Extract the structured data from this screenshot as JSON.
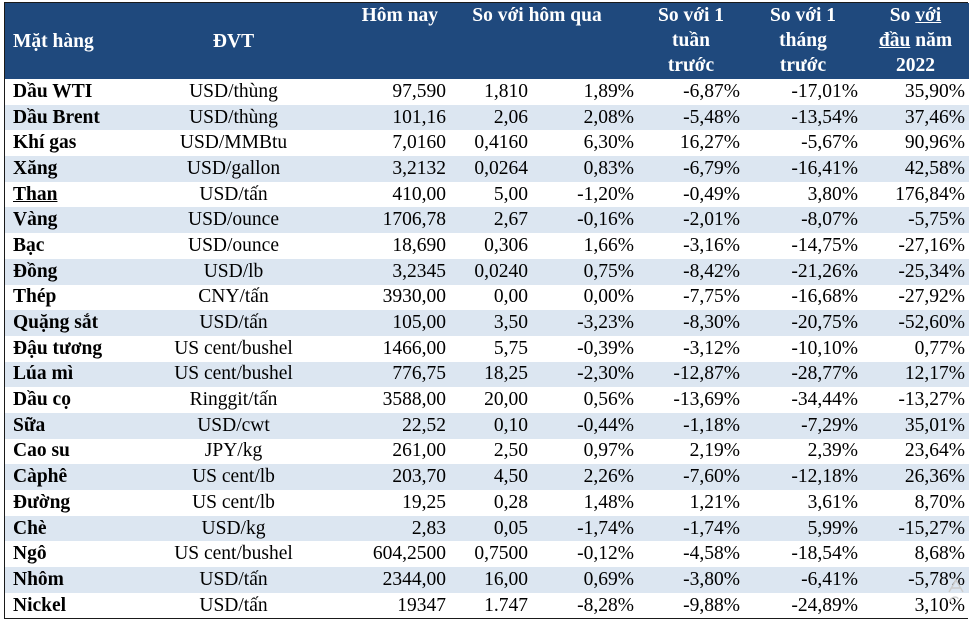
{
  "headers": {
    "commodity": "Mặt hàng",
    "unit": "ĐVT",
    "today": "Hôm nay",
    "vs_yesterday": "So với hôm qua",
    "vs_week_l1": "So với 1",
    "vs_week_l2": "tuần",
    "vs_week_l3": "trước",
    "vs_month_l1": "So với 1",
    "vs_month_l2": "tháng",
    "vs_month_l3": "trước",
    "ytd_l1a": "So ",
    "ytd_l1b": "với",
    "ytd_l2a": "đầu",
    "ytd_l2b": " năm",
    "ytd_l3": "2022"
  },
  "rows": [
    {
      "name": "Dầu WTI",
      "unit": "USD/thùng",
      "today": "97,590",
      "chg": "1,810",
      "chg_pct": "1,89%",
      "week": "-6,87%",
      "month": "-17,01%",
      "ytd": "35,90%"
    },
    {
      "name": "Dầu Brent",
      "unit": "USD/thùng",
      "today": "101,16",
      "chg": "2,06",
      "chg_pct": "2,08%",
      "week": "-5,48%",
      "month": "-13,54%",
      "ytd": "37,46%"
    },
    {
      "name": "Khí gas",
      "unit": "USD/MMBtu",
      "today": "7,0160",
      "chg": "0,4160",
      "chg_pct": "6,30%",
      "week": "16,27%",
      "month": "-5,67%",
      "ytd": "90,96%"
    },
    {
      "name": "Xăng",
      "unit": "USD/gallon",
      "today": "3,2132",
      "chg": "0,0264",
      "chg_pct": "0,83%",
      "week": "-6,79%",
      "month": "-16,41%",
      "ytd": "42,58%"
    },
    {
      "name": "Than",
      "unit": "USD/tấn",
      "today": "410,00",
      "chg": "5,00",
      "chg_pct": "-1,20%",
      "week": "-0,49%",
      "month": "3,80%",
      "ytd": "176,84%"
    },
    {
      "name": "Vàng",
      "unit": "USD/ounce",
      "today": "1706,78",
      "chg": "2,67",
      "chg_pct": "-0,16%",
      "week": "-2,01%",
      "month": "-8,07%",
      "ytd": "-5,75%"
    },
    {
      "name": "Bạc",
      "unit": "USD/ounce",
      "today": "18,690",
      "chg": "0,306",
      "chg_pct": "1,66%",
      "week": "-3,16%",
      "month": "-14,75%",
      "ytd": "-27,16%"
    },
    {
      "name": "Đồng",
      "unit": "USD/lb",
      "today": "3,2345",
      "chg": "0,0240",
      "chg_pct": "0,75%",
      "week": "-8,42%",
      "month": "-21,26%",
      "ytd": "-25,34%"
    },
    {
      "name": "Thép",
      "unit": "CNY/tấn",
      "today": "3930,00",
      "chg": "0,00",
      "chg_pct": "0,00%",
      "week": "-7,75%",
      "month": "-16,68%",
      "ytd": "-27,92%"
    },
    {
      "name": "Quặng sắt",
      "unit": "USD/tấn",
      "today": "105,00",
      "chg": "3,50",
      "chg_pct": "-3,23%",
      "week": "-8,30%",
      "month": "-20,75%",
      "ytd": "-52,60%"
    },
    {
      "name": "Đậu tương",
      "unit": "US cent/bushel",
      "today": "1466,00",
      "chg": "5,75",
      "chg_pct": "-0,39%",
      "week": "-3,12%",
      "month": "-10,10%",
      "ytd": "0,77%"
    },
    {
      "name": "Lúa mì",
      "unit": "US cent/bushel",
      "today": "776,75",
      "chg": "18,25",
      "chg_pct": "-2,30%",
      "week": "-12,87%",
      "month": "-28,77%",
      "ytd": "12,17%"
    },
    {
      "name": "Dầu cọ",
      "unit": "Ringgit/tấn",
      "today": "3588,00",
      "chg": "20,00",
      "chg_pct": "0,56%",
      "week": "-13,69%",
      "month": "-34,44%",
      "ytd": "-13,27%"
    },
    {
      "name": "Sữa",
      "unit": "USD/cwt",
      "today": "22,52",
      "chg": "0,10",
      "chg_pct": "-0,44%",
      "week": "-1,18%",
      "month": "-7,29%",
      "ytd": "35,01%"
    },
    {
      "name": "Cao su",
      "unit": "JPY/kg",
      "today": "261,00",
      "chg": "2,50",
      "chg_pct": "0,97%",
      "week": "2,19%",
      "month": "2,39%",
      "ytd": "23,64%"
    },
    {
      "name": "Càphê",
      "unit": "US cent/lb",
      "today": "203,70",
      "chg": "4,50",
      "chg_pct": "2,26%",
      "week": "-7,60%",
      "month": "-12,18%",
      "ytd": "26,36%"
    },
    {
      "name": "Đường",
      "unit": "US cent/lb",
      "today": "19,25",
      "chg": "0,28",
      "chg_pct": "1,48%",
      "week": "1,21%",
      "month": "3,61%",
      "ytd": "8,70%"
    },
    {
      "name": "Chè",
      "unit": "USD/kg",
      "today": "2,83",
      "chg": "0,05",
      "chg_pct": "-1,74%",
      "week": "-1,74%",
      "month": "5,99%",
      "ytd": "-15,27%"
    },
    {
      "name": "Ngô",
      "unit": "US cent/bushel",
      "today": "604,2500",
      "chg": "0,7500",
      "chg_pct": "-0,12%",
      "week": "-4,58%",
      "month": "-18,54%",
      "ytd": "8,68%"
    },
    {
      "name": "Nhôm",
      "unit": "USD/tấn",
      "today": "2344,00",
      "chg": "16,00",
      "chg_pct": "0,69%",
      "week": "-3,80%",
      "month": "-6,41%",
      "ytd": "-5,78%"
    },
    {
      "name": "Nickel",
      "unit": "USD/tấn",
      "today": "19347",
      "chg": "1.747",
      "chg_pct": "-8,28%",
      "week": "-9,88%",
      "month": "-24,89%",
      "ytd": "3,10%"
    }
  ],
  "colors": {
    "header_bg": "#1f497d",
    "header_text": "#ffffff",
    "stripe": "#dce6f1"
  }
}
